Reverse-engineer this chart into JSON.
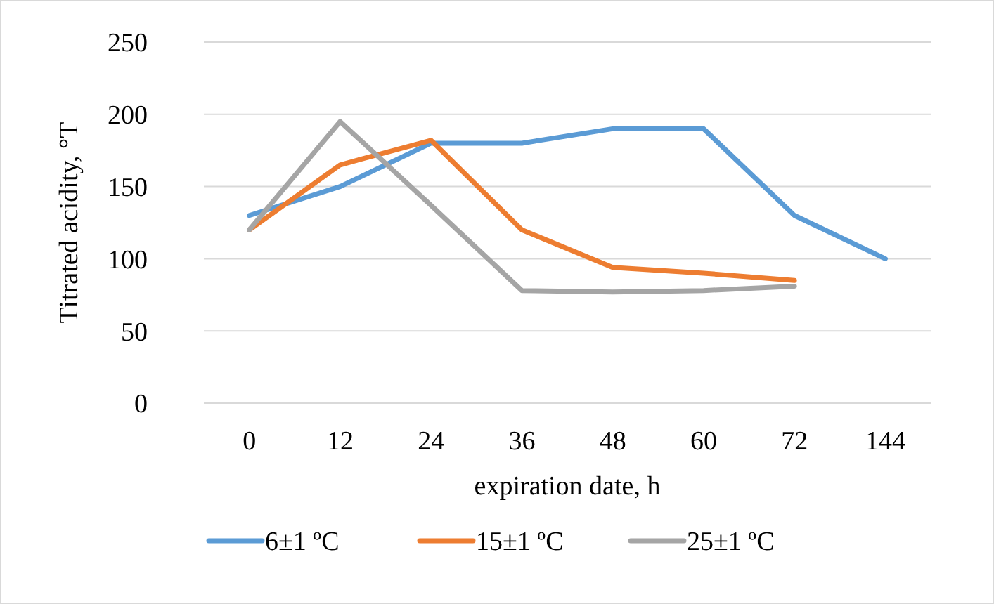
{
  "chart_data": {
    "type": "line",
    "xlabel": "expiration date, h",
    "ylabel": "Titrated acidity, °T",
    "categories": [
      "0",
      "12",
      "24",
      "36",
      "48",
      "60",
      "72",
      "144"
    ],
    "series": [
      {
        "name": "6±1 ºC",
        "color": "#5b9bd5",
        "values": [
          130,
          150,
          180,
          180,
          190,
          190,
          130,
          100
        ]
      },
      {
        "name": "15±1 ºC",
        "color": "#ed7d31",
        "values": [
          120,
          165,
          182,
          120,
          94,
          90,
          85,
          null
        ]
      },
      {
        "name": "25±1 ºC",
        "color": "#a5a5a5",
        "values": [
          120,
          195,
          137,
          78,
          77,
          78,
          81,
          null
        ]
      }
    ],
    "ylim": [
      0,
      250
    ],
    "yticks": [
      0,
      50,
      100,
      150,
      200,
      250
    ],
    "grid": "y",
    "legend": "bottom",
    "marker": "none",
    "line_style": "solid"
  }
}
